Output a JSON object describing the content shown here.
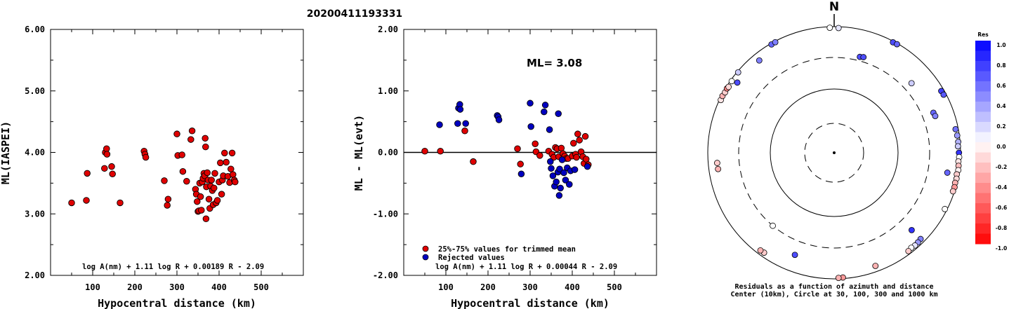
{
  "title": "20200411193331",
  "chart_data": [
    {
      "type": "scatter",
      "xlabel": "Hypocentral distance (km)",
      "ylabel": "ML(IASPEI)",
      "xlim": [
        0,
        600
      ],
      "ylim": [
        2.0,
        6.0
      ],
      "xticks": [
        "100",
        "200",
        "300",
        "400",
        "500"
      ],
      "yticks": [
        "2.00",
        "3.00",
        "4.00",
        "5.00",
        "6.00"
      ],
      "formula": "log A(nm) + 1.11 log R + 0.00189 R - 2.09",
      "series": [
        {
          "color": "#e00000",
          "points": [
            [
              50,
              3.18
            ],
            [
              85,
              3.22
            ],
            [
              87,
              3.66
            ],
            [
              128,
              3.74
            ],
            [
              130,
              4.0
            ],
            [
              133,
              4.06
            ],
            [
              134,
              3.97
            ],
            [
              145,
              3.77
            ],
            [
              147,
              3.65
            ],
            [
              165,
              3.18
            ],
            [
              222,
              4.02
            ],
            [
              224,
              3.97
            ],
            [
              226,
              3.92
            ],
            [
              270,
              3.54
            ],
            [
              277,
              3.14
            ],
            [
              279,
              3.24
            ],
            [
              300,
              4.3
            ],
            [
              302,
              3.95
            ],
            [
              312,
              3.96
            ],
            [
              314,
              3.69
            ],
            [
              323,
              3.53
            ],
            [
              333,
              4.21
            ],
            [
              336,
              4.35
            ],
            [
              344,
              3.4
            ],
            [
              346,
              3.32
            ],
            [
              348,
              3.2
            ],
            [
              350,
              3.04
            ],
            [
              352,
              3.05
            ],
            [
              354,
              3.5
            ],
            [
              356,
              3.28
            ],
            [
              358,
              3.06
            ],
            [
              360,
              3.52
            ],
            [
              362,
              3.58
            ],
            [
              364,
              3.66
            ],
            [
              366,
              3.62
            ],
            [
              367,
              4.23
            ],
            [
              368,
              4.09
            ],
            [
              369,
              2.92
            ],
            [
              370,
              3.44
            ],
            [
              372,
              3.67
            ],
            [
              374,
              3.55
            ],
            [
              376,
              3.24
            ],
            [
              378,
              3.09
            ],
            [
              380,
              3.45
            ],
            [
              382,
              3.55
            ],
            [
              384,
              3.38
            ],
            [
              386,
              3.15
            ],
            [
              388,
              3.42
            ],
            [
              390,
              3.66
            ],
            [
              393,
              3.18
            ],
            [
              396,
              3.22
            ],
            [
              400,
              3.52
            ],
            [
              403,
              3.83
            ],
            [
              406,
              3.32
            ],
            [
              408,
              3.55
            ],
            [
              410,
              3.62
            ],
            [
              413,
              3.99
            ],
            [
              417,
              3.84
            ],
            [
              421,
              3.61
            ],
            [
              425,
              3.51
            ],
            [
              428,
              3.73
            ],
            [
              431,
              3.99
            ],
            [
              433,
              3.64
            ],
            [
              436,
              3.55
            ],
            [
              438,
              3.52
            ]
          ]
        }
      ]
    },
    {
      "type": "scatter",
      "xlabel": "Hypocentral distance (km)",
      "ylabel": "ML - ML(evt)",
      "xlim": [
        0,
        600
      ],
      "ylim": [
        -2.0,
        2.0
      ],
      "xticks": [
        "100",
        "200",
        "300",
        "400",
        "500"
      ],
      "yticks": [
        "-2.00",
        "-1.00",
        "0.00",
        "1.00",
        "2.00"
      ],
      "annotation": "ML= 3.08",
      "formula": "log A(nm) + 1.11 log R + 0.00044 R - 2.09",
      "series": [
        {
          "name": "25%-75% values for trimmed mean",
          "color": "#e00000",
          "points": [
            [
              50,
              0.02
            ],
            [
              87,
              0.02
            ],
            [
              145,
              0.35
            ],
            [
              165,
              -0.15
            ],
            [
              270,
              0.06
            ],
            [
              277,
              -0.19
            ],
            [
              312,
              0.14
            ],
            [
              314,
              0.01
            ],
            [
              323,
              -0.05
            ],
            [
              344,
              0.02
            ],
            [
              352,
              -0.03
            ],
            [
              356,
              -0.08
            ],
            [
              360,
              0.08
            ],
            [
              364,
              0.06
            ],
            [
              368,
              -0.07
            ],
            [
              374,
              0.07
            ],
            [
              378,
              -0.02
            ],
            [
              382,
              -0.06
            ],
            [
              386,
              -0.1
            ],
            [
              390,
              -0.1
            ],
            [
              400,
              -0.06
            ],
            [
              403,
              0.15
            ],
            [
              408,
              -0.03
            ],
            [
              410,
              -0.08
            ],
            [
              413,
              0.3
            ],
            [
              417,
              0.2
            ],
            [
              421,
              0.01
            ],
            [
              425,
              -0.07
            ],
            [
              428,
              -0.18
            ],
            [
              431,
              0.26
            ],
            [
              433,
              -0.11
            ],
            [
              438,
              -0.2
            ]
          ]
        },
        {
          "name": "Rejected values",
          "color": "#0000c0",
          "points": [
            [
              85,
              0.45
            ],
            [
              128,
              0.47
            ],
            [
              130,
              0.72
            ],
            [
              133,
              0.78
            ],
            [
              134,
              0.7
            ],
            [
              147,
              0.47
            ],
            [
              222,
              0.6
            ],
            [
              224,
              0.58
            ],
            [
              226,
              0.53
            ],
            [
              279,
              -0.35
            ],
            [
              300,
              0.8
            ],
            [
              302,
              0.42
            ],
            [
              333,
              0.66
            ],
            [
              336,
              0.77
            ],
            [
              346,
              0.37
            ],
            [
              348,
              -0.15
            ],
            [
              350,
              -0.26
            ],
            [
              354,
              -0.38
            ],
            [
              358,
              -0.55
            ],
            [
              362,
              -0.48
            ],
            [
              366,
              -0.32
            ],
            [
              367,
              0.63
            ],
            [
              369,
              -0.7
            ],
            [
              370,
              -0.27
            ],
            [
              372,
              -0.58
            ],
            [
              376,
              -0.12
            ],
            [
              380,
              -0.33
            ],
            [
              384,
              -0.45
            ],
            [
              388,
              -0.25
            ],
            [
              393,
              -0.52
            ],
            [
              396,
              -0.3
            ],
            [
              406,
              -0.28
            ],
            [
              436,
              -0.23
            ]
          ]
        }
      ]
    }
  ],
  "polar": {
    "north_label": "N",
    "caption_line1": "Residuals as a function of azimuth and distance",
    "caption_line2": "Center (10km), Circle at 30, 100, 300 and 1000 km",
    "colorbar_title": "Res",
    "colorbar_labels": [
      "1.0",
      "0.8",
      "0.6",
      "0.4",
      "0.2",
      "0.0",
      "-0.2",
      "-0.4",
      "-0.6",
      "-0.8",
      "-1.0"
    ],
    "stations": [
      {
        "az": 15,
        "dist": 350,
        "res": 0.7
      },
      {
        "az": 17,
        "dist": 360,
        "res": 0.7
      },
      {
        "az": 48,
        "dist": 420,
        "res": 0.2
      },
      {
        "az": 68,
        "dist": 470,
        "res": 0.6
      },
      {
        "az": 70,
        "dist": 480,
        "res": 0.5
      },
      {
        "az": 60,
        "dist": 900,
        "res": 0.75
      },
      {
        "az": 62,
        "dist": 910,
        "res": 0.65
      },
      {
        "az": 79,
        "dist": 900,
        "res": 0.55
      },
      {
        "az": 82,
        "dist": 920,
        "res": 0.4
      },
      {
        "az": 85,
        "dist": 930,
        "res": 0.3
      },
      {
        "az": 87,
        "dist": 910,
        "res": 0.2
      },
      {
        "az": 90,
        "dist": 940,
        "res": 0.8
      },
      {
        "az": 92,
        "dist": 950,
        "res": 0.0
      },
      {
        "az": 94,
        "dist": 930,
        "res": -0.1
      },
      {
        "az": 96,
        "dist": 950,
        "res": -0.25
      },
      {
        "az": 98,
        "dist": 960,
        "res": -0.05
      },
      {
        "az": 100,
        "dist": 930,
        "res": -0.2
      },
      {
        "az": 102,
        "dist": 950,
        "res": -0.15
      },
      {
        "az": 104,
        "dist": 935,
        "res": -0.3
      },
      {
        "az": 106,
        "dist": 955,
        "res": -0.4
      },
      {
        "az": 108,
        "dist": 945,
        "res": -0.2
      },
      {
        "az": 117,
        "dist": 920,
        "res": 0.0
      },
      {
        "az": 135,
        "dist": 850,
        "res": 0.5
      },
      {
        "az": 137,
        "dist": 870,
        "res": 0.4
      },
      {
        "az": 139,
        "dist": 880,
        "res": 0.1
      },
      {
        "az": 141,
        "dist": 860,
        "res": 0.0
      },
      {
        "az": 143,
        "dist": 890,
        "res": -0.2
      },
      {
        "az": 160,
        "dist": 800,
        "res": -0.3
      },
      {
        "az": 176,
        "dist": 960,
        "res": -0.4
      },
      {
        "az": 178,
        "dist": 965,
        "res": -0.3
      },
      {
        "az": 215,
        "dist": 850,
        "res": -0.2
      },
      {
        "az": 217,
        "dist": 860,
        "res": -0.3
      },
      {
        "az": 135,
        "dist": 520,
        "res": 0.8
      },
      {
        "az": 201,
        "dist": 520,
        "res": 0.7
      },
      {
        "az": 220,
        "dist": 300,
        "res": 0.0
      },
      {
        "az": 100,
        "dist": 640,
        "res": 0.6
      },
      {
        "az": 295,
        "dist": 950,
        "res": -0.1
      },
      {
        "az": 297,
        "dist": 960,
        "res": -0.3
      },
      {
        "az": 299,
        "dist": 940,
        "res": -0.2
      },
      {
        "az": 301,
        "dist": 950,
        "res": -0.5
      },
      {
        "az": 302,
        "dist": 930,
        "res": -0.15
      },
      {
        "az": 305,
        "dist": 950,
        "res": 0.0
      },
      {
        "az": 310,
        "dist": 960,
        "res": 0.2
      },
      {
        "az": 306,
        "dist": 770,
        "res": 0.7
      },
      {
        "az": 262,
        "dist": 700,
        "res": -0.3
      },
      {
        "az": 265,
        "dist": 705,
        "res": -0.2
      },
      {
        "az": 321,
        "dist": 750,
        "res": 0.5
      },
      {
        "az": 330,
        "dist": 960,
        "res": 0.6
      },
      {
        "az": 332,
        "dist": 965,
        "res": 0.5
      },
      {
        "az": 358,
        "dist": 960,
        "res": 0.0
      },
      {
        "az": 2,
        "dist": 950,
        "res": 0.1
      },
      {
        "az": 28,
        "dist": 960,
        "res": 0.7
      },
      {
        "az": 30,
        "dist": 970,
        "res": 0.6
      }
    ]
  }
}
